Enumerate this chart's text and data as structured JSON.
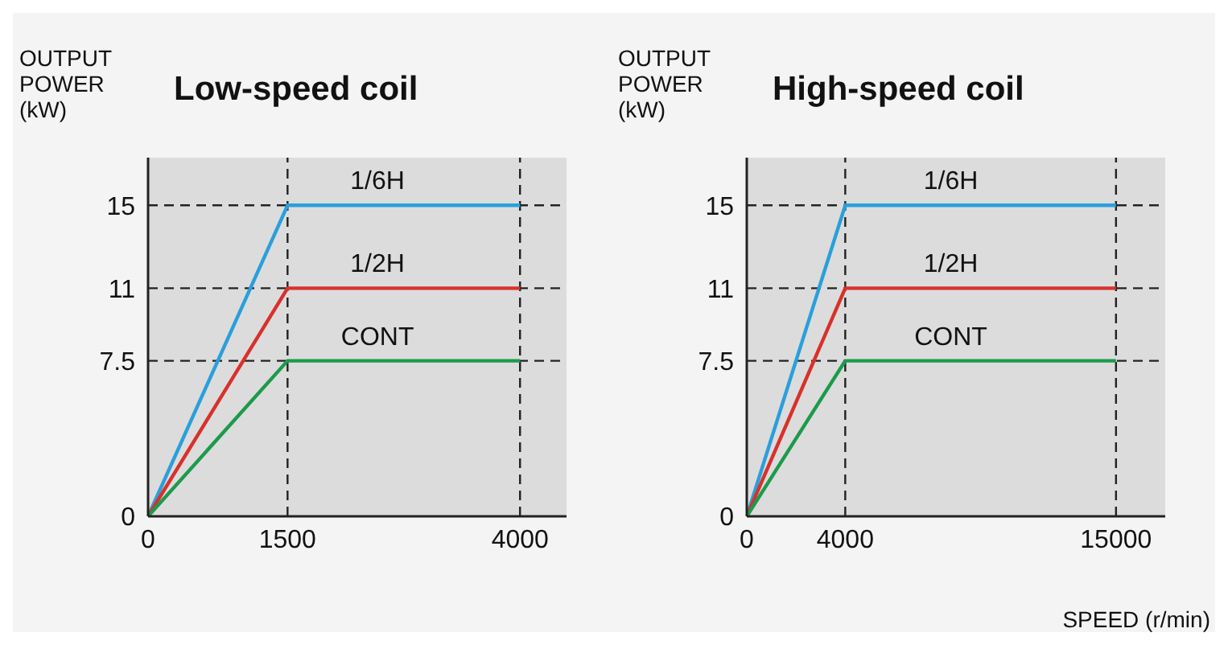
{
  "chart_data": [
    {
      "type": "line",
      "title": "Low-speed coil",
      "ylabel": "OUTPUT POWER (kW)",
      "x": [
        0,
        1500,
        4000
      ],
      "xlim": [
        0,
        4500
      ],
      "xticks": [
        0,
        1500,
        4000
      ],
      "ylim": [
        0,
        17.3
      ],
      "yticks": [
        0,
        7.5,
        11,
        15
      ],
      "grid": false,
      "marker": "none",
      "line_style": "solid",
      "series": [
        {
          "name": "1/6H",
          "color": "#2a9fdc",
          "values": [
            0,
            15,
            15
          ]
        },
        {
          "name": "1/2H",
          "color": "#d8312b",
          "values": [
            0,
            11,
            11
          ]
        },
        {
          "name": "CONT",
          "color": "#1d9a4c",
          "values": [
            0,
            7.5,
            7.5
          ]
        }
      ],
      "ref_lines": [
        {
          "axis": "y",
          "value": 15,
          "line_style": "dashed",
          "color": "#222222"
        },
        {
          "axis": "y",
          "value": 11,
          "line_style": "dashed",
          "color": "#222222"
        },
        {
          "axis": "y",
          "value": 7.5,
          "line_style": "dashed",
          "color": "#222222"
        },
        {
          "axis": "x",
          "value": 1500,
          "line_style": "dashed",
          "color": "#222222"
        },
        {
          "axis": "x",
          "value": 4000,
          "line_style": "dashed",
          "color": "#222222"
        }
      ]
    },
    {
      "type": "line",
      "title": "High-speed coil",
      "ylabel": "OUTPUT POWER (kW)",
      "xlabel": "SPEED (r/min)",
      "x": [
        0,
        4000,
        15000
      ],
      "xlim": [
        0,
        17000
      ],
      "xticks": [
        0,
        4000,
        15000
      ],
      "ylim": [
        0,
        17.3
      ],
      "yticks": [
        0,
        7.5,
        11,
        15
      ],
      "grid": false,
      "marker": "none",
      "line_style": "solid",
      "series": [
        {
          "name": "1/6H",
          "color": "#2a9fdc",
          "values": [
            0,
            15,
            15
          ]
        },
        {
          "name": "1/2H",
          "color": "#d8312b",
          "values": [
            0,
            11,
            11
          ]
        },
        {
          "name": "CONT",
          "color": "#1d9a4c",
          "values": [
            0,
            7.5,
            7.5
          ]
        }
      ],
      "ref_lines": [
        {
          "axis": "y",
          "value": 15,
          "line_style": "dashed",
          "color": "#222222"
        },
        {
          "axis": "y",
          "value": 11,
          "line_style": "dashed",
          "color": "#222222"
        },
        {
          "axis": "y",
          "value": 7.5,
          "line_style": "dashed",
          "color": "#222222"
        },
        {
          "axis": "x",
          "value": 4000,
          "line_style": "dashed",
          "color": "#222222"
        },
        {
          "axis": "x",
          "value": 15000,
          "line_style": "dashed",
          "color": "#222222"
        }
      ]
    }
  ]
}
